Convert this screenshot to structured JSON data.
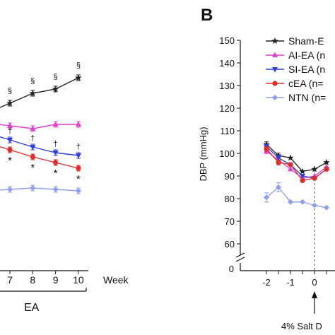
{
  "colors": {
    "sham": "#222222",
    "ai": "#e03fd1",
    "si": "#2f3fd8",
    "cea": "#e22b2b",
    "ntn": "#8e9ef0",
    "axis": "#111111"
  },
  "panel_a": {
    "week_label": "Week",
    "group_label": "EA",
    "tick_labels": [
      "7",
      "8",
      "9",
      "10"
    ],
    "markers": {
      "section": "§",
      "dagger": "†",
      "star": "*"
    }
  },
  "panel_b": {
    "panel_letter": "B",
    "axis_break": "//",
    "annotation": "4% Salt D"
  },
  "chart_data": [
    {
      "type": "line",
      "panel": "A (cropped)",
      "xlabel": "Week",
      "x_group_label": "EA",
      "x": [
        7,
        8,
        9,
        10
      ],
      "x_tick_labels": [
        "7",
        "8",
        "9",
        "10"
      ],
      "series": [
        {
          "color": "#222222",
          "marker": "star",
          "values": [
            127,
            134,
            137,
            145
          ]
        },
        {
          "color": "#e03fd1",
          "marker": "triangle",
          "values": [
            111,
            109,
            112,
            112
          ]
        },
        {
          "color": "#2f3fd8",
          "marker": "triangle-down",
          "values": [
            101,
            96,
            92,
            90
          ]
        },
        {
          "color": "#e22b2b",
          "marker": "circle",
          "values": [
            94,
            89,
            85,
            81
          ]
        },
        {
          "color": "#8e9ef0",
          "marker": "diamond",
          "values": [
            66,
            67,
            66,
            65
          ]
        }
      ],
      "significance": {
        "section": [
          7,
          8,
          9,
          10
        ],
        "dagger": [
          7,
          8,
          9,
          10
        ],
        "star": [
          7,
          8,
          9,
          10
        ]
      }
    },
    {
      "type": "line",
      "panel": "B",
      "title": "",
      "ylabel": "DBP (mmHg)",
      "ylim": [
        60,
        150
      ],
      "yticks": [
        60,
        70,
        80,
        90,
        100,
        110,
        120,
        130,
        140,
        150
      ],
      "y_broken_axis": true,
      "x_ticks": [
        -2,
        -1,
        0
      ],
      "x": [
        -2,
        -1.5,
        -1,
        -0.5,
        0,
        0.5
      ],
      "legend_position": "top-right",
      "series": [
        {
          "name": "Sham-E",
          "color": "#222222",
          "marker": "star",
          "values": [
            104,
            99,
            98,
            92,
            93,
            96
          ]
        },
        {
          "name": "AI-EA (n",
          "color": "#e03fd1",
          "marker": "triangle",
          "values": [
            101,
            97,
            93,
            89,
            90,
            94
          ]
        },
        {
          "name": "SI-EA (n",
          "color": "#2f3fd8",
          "marker": "triangle-down",
          "values": [
            103,
            98,
            95,
            90,
            89,
            93
          ]
        },
        {
          "name": "cEA (n=",
          "color": "#e22b2b",
          "marker": "circle",
          "values": [
            102,
            96,
            95,
            88,
            89,
            93
          ]
        },
        {
          "name": "NTN (n=",
          "color": "#8e9ef0",
          "marker": "diamond",
          "values": [
            80.5,
            85,
            78.5,
            78.5,
            77,
            76
          ]
        }
      ],
      "annotation": "4% Salt D"
    }
  ]
}
